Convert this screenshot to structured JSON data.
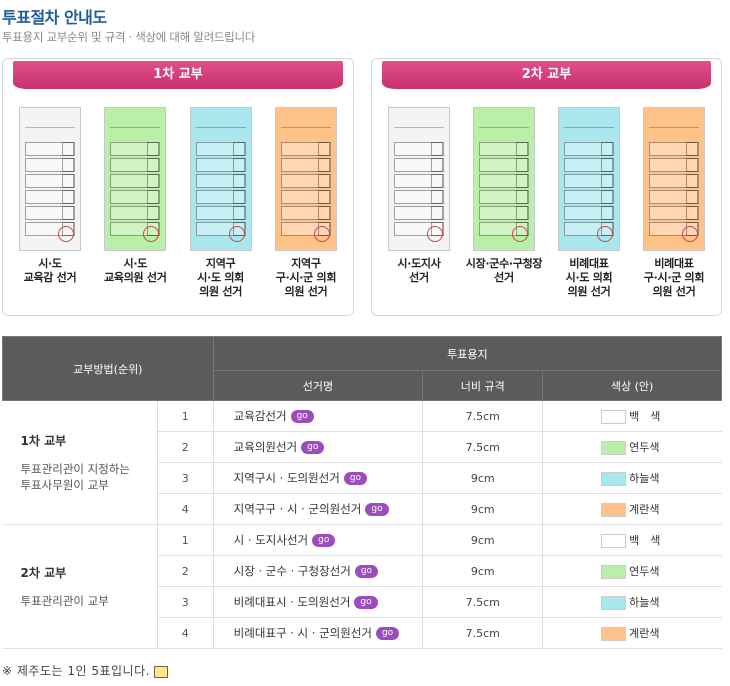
{
  "page": {
    "title": "투표절차 안내도",
    "subtitle": "투표용지 교부순위 및 규격 · 색상에 대해 알려드립니다"
  },
  "rounds": [
    {
      "header": "1차 교부",
      "ballots": [
        {
          "label": "시·도\n교육감 선거",
          "color": "#f4f4f4"
        },
        {
          "label": "시·도\n교육의원 선거",
          "color": "#b9efa6"
        },
        {
          "label": "지역구\n시·도 의회\n의원 선거",
          "color": "#a9e6ee"
        },
        {
          "label": "지역구\n구·시·군 의회\n의원 선거",
          "color": "#ffc38a"
        }
      ]
    },
    {
      "header": "2차 교부",
      "ballots": [
        {
          "label": "시·도지사\n선거",
          "color": "#f4f4f4"
        },
        {
          "label": "시장·군수·구청장\n선거",
          "color": "#b9efa6"
        },
        {
          "label": "비례대표\n시·도 의회\n의원 선거",
          "color": "#a9e6ee"
        },
        {
          "label": "비례대표\n구·시·군 의회\n의원 선거",
          "color": "#ffc38a"
        }
      ]
    }
  ],
  "table": {
    "header_method": "교부방법(순위)",
    "header_ballot": "투표용지",
    "header_name": "선거명",
    "header_width": "너비 규격",
    "header_color": "색상 (안)",
    "go_label": "go",
    "groups": [
      {
        "title": "1차 교부",
        "desc": "투표관리관이 지정하는\n투표사무원이 교부",
        "rows": [
          {
            "rank": "1",
            "name": "교육감선거",
            "width": "7.5cm",
            "color_name": "백　색",
            "color": "#ffffff"
          },
          {
            "rank": "2",
            "name": "교육의원선거",
            "width": "7.5cm",
            "color_name": "연두색",
            "color": "#b9efa6"
          },
          {
            "rank": "3",
            "name": "지역구시 · 도의원선거",
            "width": "9cm",
            "color_name": "하늘색",
            "color": "#a9e6ee"
          },
          {
            "rank": "4",
            "name": "지역구구 · 시 · 군의원선거",
            "width": "9cm",
            "color_name": "계란색",
            "color": "#ffc38a"
          }
        ]
      },
      {
        "title": "2차 교부",
        "desc": "투표관리관이 교부",
        "rows": [
          {
            "rank": "1",
            "name": "시 · 도지사선거",
            "width": "9cm",
            "color_name": "백　색",
            "color": "#ffffff"
          },
          {
            "rank": "2",
            "name": "시장 · 군수 · 구청장선거",
            "width": "9cm",
            "color_name": "연두색",
            "color": "#b9efa6"
          },
          {
            "rank": "3",
            "name": "비례대표시 · 도의원선거",
            "width": "7.5cm",
            "color_name": "하늘색",
            "color": "#a9e6ee"
          },
          {
            "rank": "4",
            "name": "비례대표구 · 시 · 군의원선거",
            "width": "7.5cm",
            "color_name": "계란색",
            "color": "#ffc38a"
          }
        ]
      }
    ]
  },
  "footnote": "※ 제주도는 1인 5표입니다.",
  "colors": {
    "title": "#1f5c99",
    "pink": "#d23a78",
    "header_dark": "#5b5b5b",
    "go": "#9b4dbd"
  }
}
